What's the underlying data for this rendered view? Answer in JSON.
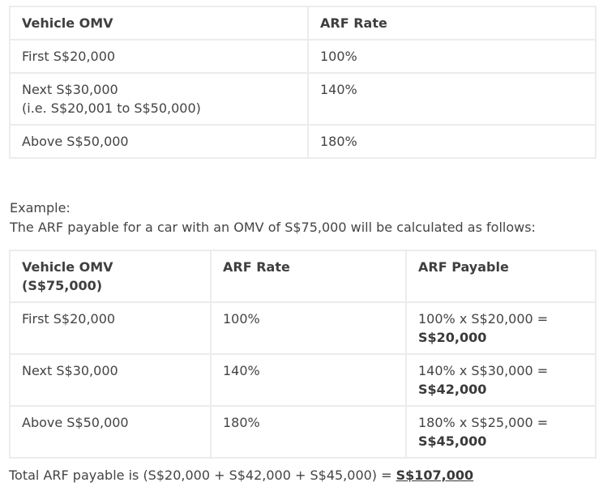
{
  "rate_table": {
    "headers": [
      "Vehicle OMV",
      "ARF Rate"
    ],
    "rows": [
      {
        "omv": "First S$20,000",
        "omv_sub": "",
        "rate": "100%"
      },
      {
        "omv": "Next S$30,000",
        "omv_sub": "(i.e. S$20,001 to S$50,000)",
        "rate": "140%"
      },
      {
        "omv": "Above S$50,000",
        "omv_sub": "",
        "rate": "180%"
      }
    ]
  },
  "example": {
    "label": "Example:",
    "text": "The ARF payable for a car with an OMV of S$75,000 will be calculated as follows:"
  },
  "example_table": {
    "headers": [
      "Vehicle OMV",
      "(S$75,000)",
      "ARF Rate",
      "ARF Payable"
    ],
    "rows": [
      {
        "omv": "First S$20,000",
        "rate": "100%",
        "calc": "100% x S$20,000 =",
        "amount": "S$20,000"
      },
      {
        "omv": "Next S$30,000",
        "rate": "140%",
        "calc": "140% x S$30,000 =",
        "amount": "S$42,000"
      },
      {
        "omv": "Above S$50,000",
        "rate": "180%",
        "calc": "180% x S$25,000 =",
        "amount": "S$45,000"
      }
    ]
  },
  "total": {
    "text": "Total ARF payable is (S$20,000 + S$42,000 + S$45,000) = ",
    "amount": "S$107,000"
  }
}
